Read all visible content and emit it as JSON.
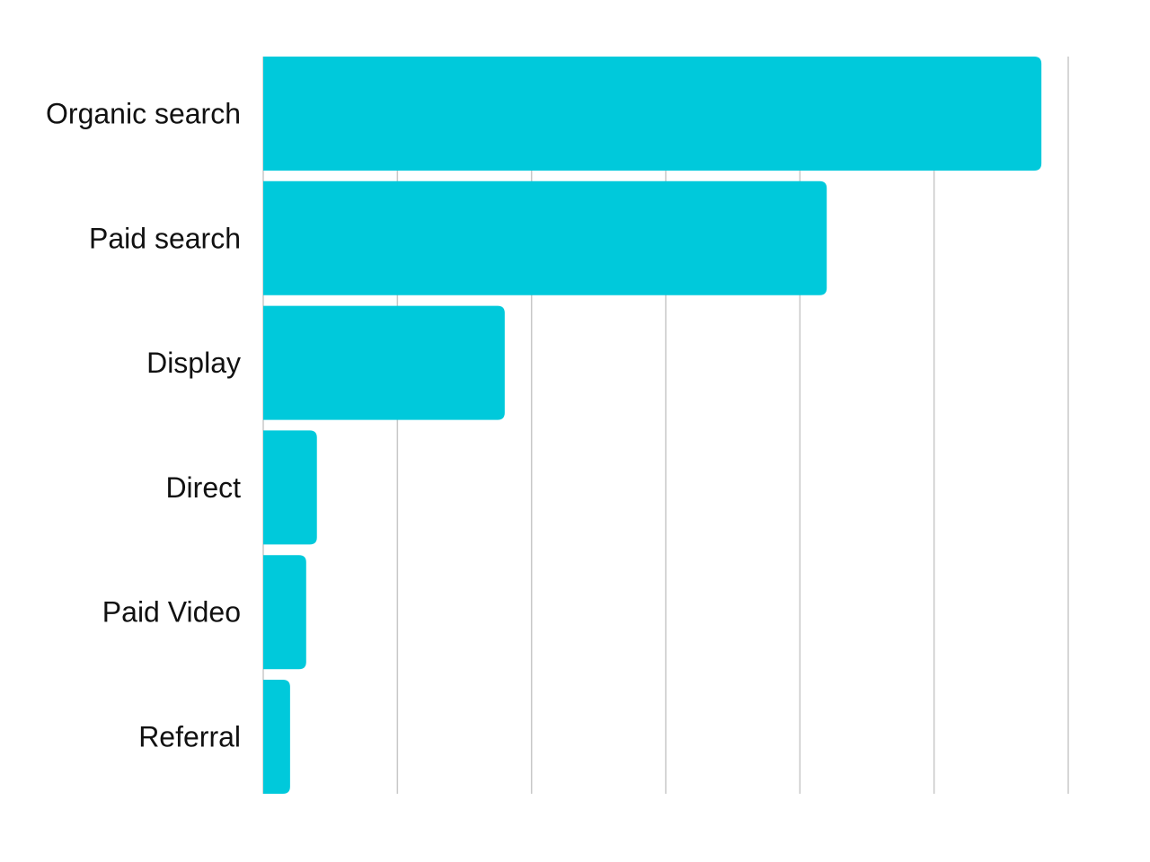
{
  "chart_data": {
    "type": "bar",
    "orientation": "horizontal",
    "categories": [
      "Organic search",
      "Paid search",
      "Display",
      "Direct",
      "Paid Video",
      "Referral"
    ],
    "values": [
      58,
      42,
      18,
      4,
      3.2,
      2
    ],
    "xlim": [
      0,
      60
    ],
    "x_gridlines": [
      0,
      10,
      20,
      30,
      40,
      50,
      60
    ],
    "grid": "vertical",
    "title": "",
    "xlabel": "",
    "ylabel": "",
    "bar_color": "#00c9db",
    "gridline_color": "#c8c8c8",
    "label_color": "#111111"
  }
}
